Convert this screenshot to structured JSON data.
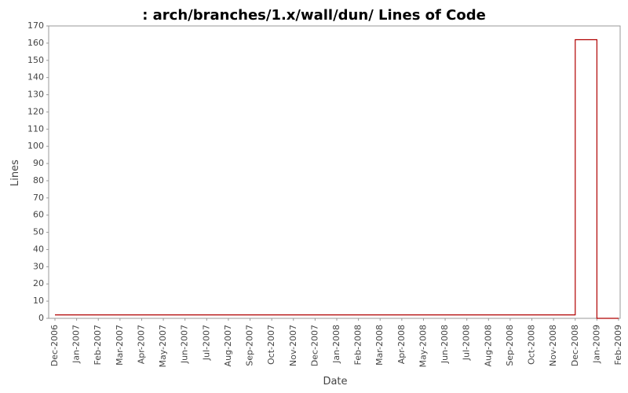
{
  "chart_data": {
    "type": "step",
    "title": ": arch/branches/1.x/wall/dun/ Lines of Code",
    "x_label": "Date",
    "y_label": "Lines",
    "categories": [
      "Dec-2006",
      "Jan-2007",
      "Feb-2007",
      "Mar-2007",
      "Apr-2007",
      "May-2007",
      "Jun-2007",
      "Jul-2007",
      "Aug-2007",
      "Sep-2007",
      "Oct-2007",
      "Nov-2007",
      "Dec-2007",
      "Jan-2008",
      "Feb-2008",
      "Mar-2008",
      "Apr-2008",
      "May-2008",
      "Jun-2008",
      "Jul-2008",
      "Aug-2008",
      "Sep-2008",
      "Oct-2008",
      "Nov-2008",
      "Dec-2008",
      "Jan-2009",
      "Feb-2009"
    ],
    "series": [
      {
        "name": "Lines",
        "color": "#b00000",
        "values": [
          2,
          2,
          2,
          2,
          2,
          2,
          2,
          2,
          2,
          2,
          2,
          2,
          2,
          2,
          2,
          2,
          2,
          2,
          2,
          2,
          2,
          2,
          2,
          2,
          162,
          0,
          null
        ]
      }
    ],
    "ylim": [
      0,
      170
    ],
    "yticks": [
      0,
      10,
      20,
      30,
      40,
      50,
      60,
      70,
      80,
      90,
      100,
      110,
      120,
      130,
      140,
      150,
      160,
      170
    ],
    "grid": false
  }
}
